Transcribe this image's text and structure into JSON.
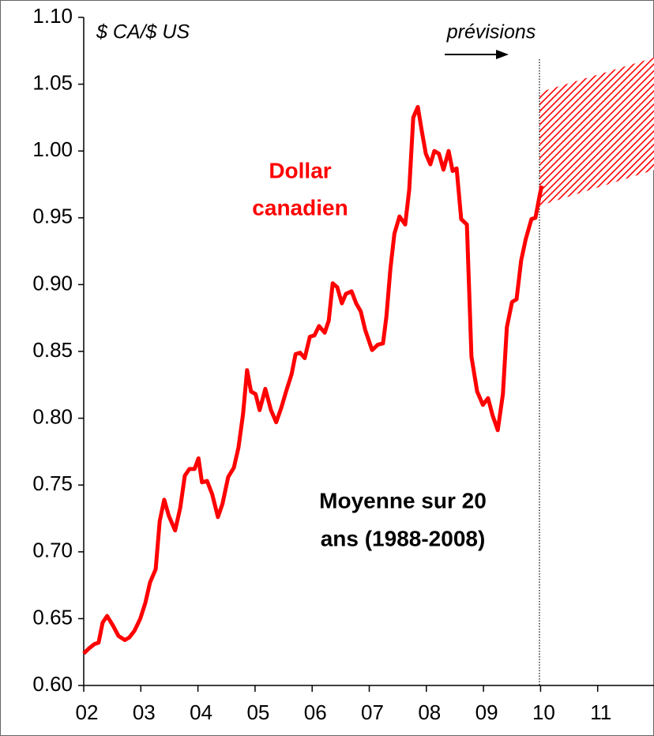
{
  "chart_data": {
    "type": "line",
    "y_label": "$ CA/$ US",
    "xlim": [
      2002,
      2012
    ],
    "xticks": [
      {
        "value": 2002,
        "label": "02"
      },
      {
        "value": 2003,
        "label": "03"
      },
      {
        "value": 2004,
        "label": "04"
      },
      {
        "value": 2005,
        "label": "05"
      },
      {
        "value": 2006,
        "label": "06"
      },
      {
        "value": 2007,
        "label": "07"
      },
      {
        "value": 2008,
        "label": "08"
      },
      {
        "value": 2009,
        "label": "09"
      },
      {
        "value": 2010,
        "label": "10"
      },
      {
        "value": 2011,
        "label": "11"
      }
    ],
    "ylim": [
      0.6,
      1.1
    ],
    "yticks": [
      {
        "value": 0.6,
        "label": "0.60"
      },
      0.65,
      {
        "value": 0.7,
        "label": "0.70"
      },
      0.75,
      {
        "value": 0.8,
        "label": "0.80"
      },
      0.85,
      {
        "value": 0.9,
        "label": "0.90"
      },
      0.95,
      {
        "value": 1.0,
        "label": "1.00"
      },
      1.05,
      {
        "value": 1.1,
        "label": "1.10"
      }
    ],
    "series": [
      {
        "name": [
          "Dollar",
          "canadien"
        ],
        "color": "#ff0000",
        "x": [
          2002.0,
          2002.1,
          2002.19,
          2002.26,
          2002.33,
          2002.41,
          2002.51,
          2002.61,
          2002.72,
          2002.8,
          2002.89,
          2002.99,
          2003.08,
          2003.16,
          2003.26,
          2003.33,
          2003.41,
          2003.49,
          2003.6,
          2003.69,
          2003.77,
          2003.85,
          2003.94,
          2004.01,
          2004.07,
          2004.16,
          2004.25,
          2004.35,
          2004.43,
          2004.53,
          2004.63,
          2004.71,
          2004.79,
          2004.86,
          2004.93,
          2005.01,
          2005.08,
          2005.18,
          2005.28,
          2005.37,
          2005.46,
          2005.55,
          2005.64,
          2005.71,
          2005.79,
          2005.87,
          2005.96,
          2006.04,
          2006.12,
          2006.22,
          2006.29,
          2006.36,
          2006.44,
          2006.52,
          2006.59,
          2006.69,
          2006.77,
          2006.85,
          2006.93,
          2007.05,
          2007.15,
          2007.24,
          2007.3,
          2007.37,
          2007.44,
          2007.53,
          2007.63,
          2007.7,
          2007.77,
          2007.85,
          2007.92,
          2007.99,
          2008.07,
          2008.14,
          2008.22,
          2008.3,
          2008.39,
          2008.46,
          2008.53,
          2008.61,
          2008.71,
          2008.79,
          2008.89,
          2008.99,
          2009.08,
          2009.16,
          2009.25,
          2009.34,
          2009.41,
          2009.5,
          2009.58,
          2009.66,
          2009.74,
          2009.84,
          2009.91,
          2009.98,
          2010.02
        ],
        "values": [
          0.624,
          0.628,
          0.631,
          0.632,
          0.647,
          0.652,
          0.645,
          0.637,
          0.634,
          0.636,
          0.641,
          0.65,
          0.662,
          0.677,
          0.687,
          0.723,
          0.739,
          0.727,
          0.716,
          0.733,
          0.757,
          0.762,
          0.762,
          0.77,
          0.752,
          0.753,
          0.743,
          0.726,
          0.736,
          0.756,
          0.763,
          0.778,
          0.803,
          0.836,
          0.82,
          0.818,
          0.806,
          0.822,
          0.806,
          0.797,
          0.808,
          0.821,
          0.833,
          0.848,
          0.849,
          0.845,
          0.861,
          0.862,
          0.869,
          0.864,
          0.873,
          0.901,
          0.898,
          0.886,
          0.893,
          0.895,
          0.886,
          0.88,
          0.866,
          0.851,
          0.855,
          0.856,
          0.876,
          0.912,
          0.938,
          0.951,
          0.945,
          0.971,
          1.025,
          1.033,
          1.015,
          0.998,
          0.99,
          1.0,
          0.998,
          0.986,
          1.0,
          0.985,
          0.987,
          0.949,
          0.945,
          0.846,
          0.82,
          0.81,
          0.815,
          0.802,
          0.791,
          0.818,
          0.868,
          0.887,
          0.889,
          0.918,
          0.934,
          0.949,
          0.95,
          0.966,
          0.974
        ]
      }
    ],
    "forecast": {
      "label": "prévisions",
      "color": "#ff0000",
      "x": [
        2009.98,
        2012
      ],
      "lower": [
        0.959,
        0.986
      ],
      "upper": [
        1.044,
        1.07
      ]
    },
    "annotation": [
      "Moyenne sur 20",
      "ans (1988-2008)"
    ]
  }
}
